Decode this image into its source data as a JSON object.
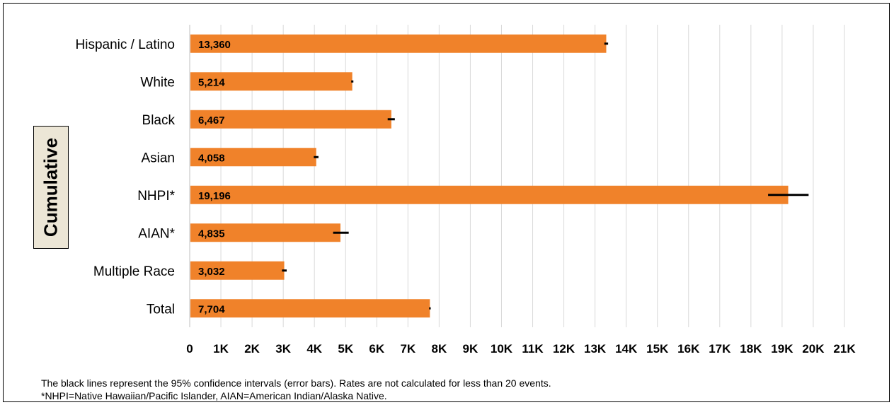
{
  "chart_data": {
    "type": "bar",
    "orientation": "horizontal",
    "panel_label": "Cumulative",
    "categories": [
      "Hispanic / Latino",
      "White",
      "Black",
      "Asian",
      "NHPI*",
      "AIAN*",
      "Multiple Race",
      "Total"
    ],
    "values": [
      13360,
      5214,
      6467,
      4058,
      19196,
      4835,
      3032,
      7704
    ],
    "value_labels": [
      "13,360",
      "5,214",
      "6,467",
      "4,058",
      "19,196",
      "4,835",
      "3,032",
      "7,704"
    ],
    "error_bars": [
      [
        13300,
        13420
      ],
      [
        5180,
        5250
      ],
      [
        6350,
        6580
      ],
      [
        3980,
        4130
      ],
      [
        18550,
        19850
      ],
      [
        4600,
        5100
      ],
      [
        2960,
        3110
      ],
      [
        7680,
        7730
      ]
    ],
    "xlim": [
      0,
      21000
    ],
    "xticks": [
      0,
      1000,
      2000,
      3000,
      4000,
      5000,
      6000,
      7000,
      8000,
      9000,
      10000,
      11000,
      12000,
      13000,
      14000,
      15000,
      16000,
      17000,
      18000,
      19000,
      20000,
      21000
    ],
    "xtick_labels": [
      "0",
      "1K",
      "2K",
      "3K",
      "4K",
      "5K",
      "6K",
      "7K",
      "8K",
      "9K",
      "10K",
      "11K",
      "12K",
      "13K",
      "14K",
      "15K",
      "16K",
      "17K",
      "18K",
      "19K",
      "20K",
      "21K"
    ],
    "grid": "vertical",
    "xlabel": "",
    "ylabel": "",
    "colors": {
      "bar": "#f0822a",
      "error_bar": "#000000",
      "grid": "#d9d9d9",
      "label_box": "#ece6d6"
    }
  },
  "footnotes": {
    "line1": "The black lines represent the 95% confidence intervals (error bars). Rates are not calculated for less than 20 events.",
    "line2": "*NHPI=Native Hawaiian/Pacific Islander, AIAN=American Indian/Alaska Native."
  }
}
